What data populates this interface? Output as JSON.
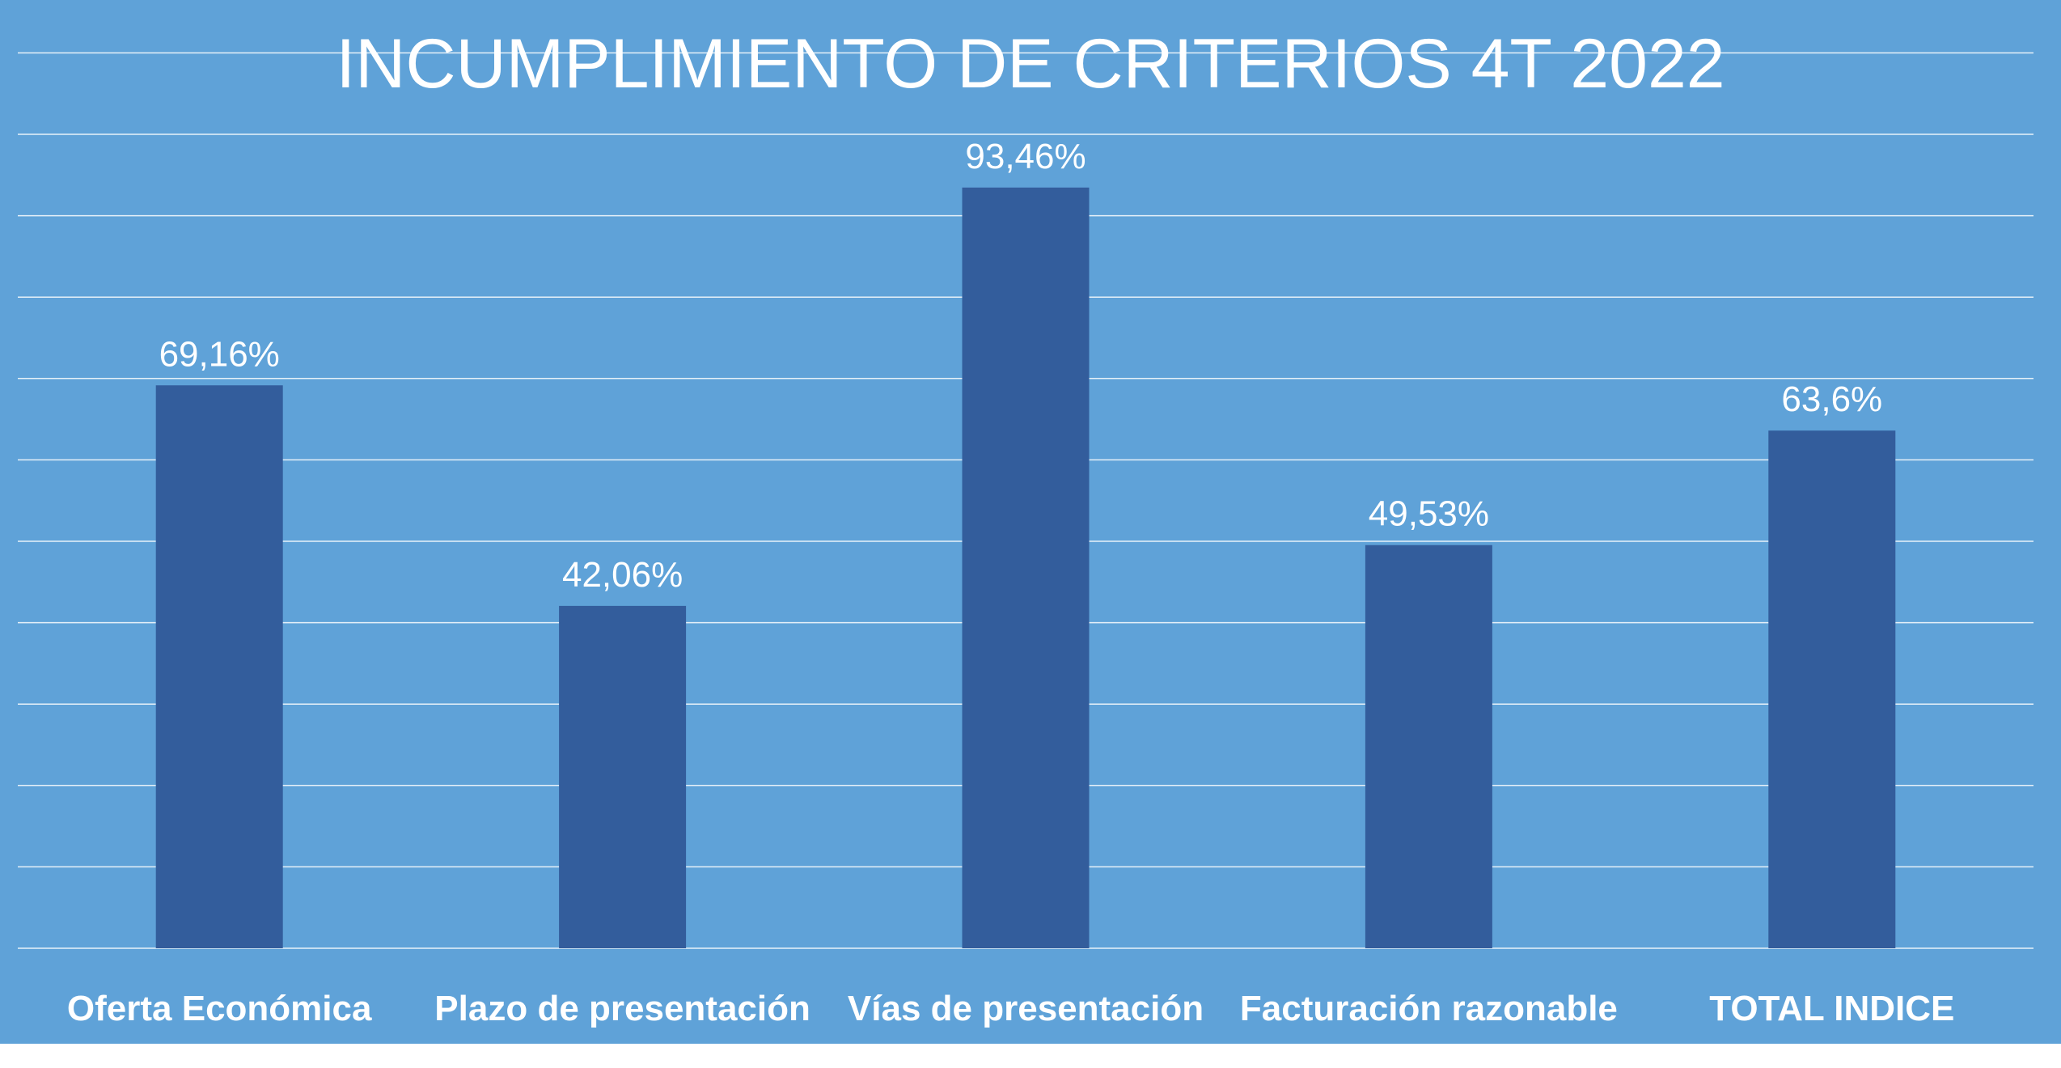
{
  "colors": {
    "background": "#5fa2d8",
    "bar": "#335d9c",
    "text": "#ffffff",
    "gridline": "#ffffff"
  },
  "chart_data": {
    "type": "bar",
    "title": "INCUMPLIMIENTO DE CRITERIOS 4T 2022",
    "categories": [
      "Oferta Económica",
      "Plazo de presentación",
      "Vías de presentación",
      "Facturación razonable",
      "TOTAL INDICE"
    ],
    "values": [
      69.16,
      42.06,
      93.46,
      49.53,
      63.6
    ],
    "data_labels": [
      "69,16%",
      "42,06%",
      "93,46%",
      "49,53%",
      "63,6%"
    ],
    "ylim": [
      0,
      100
    ],
    "gridlines": true,
    "grid_step": 10,
    "legend": "none",
    "y_axis_labels_visible": false
  }
}
